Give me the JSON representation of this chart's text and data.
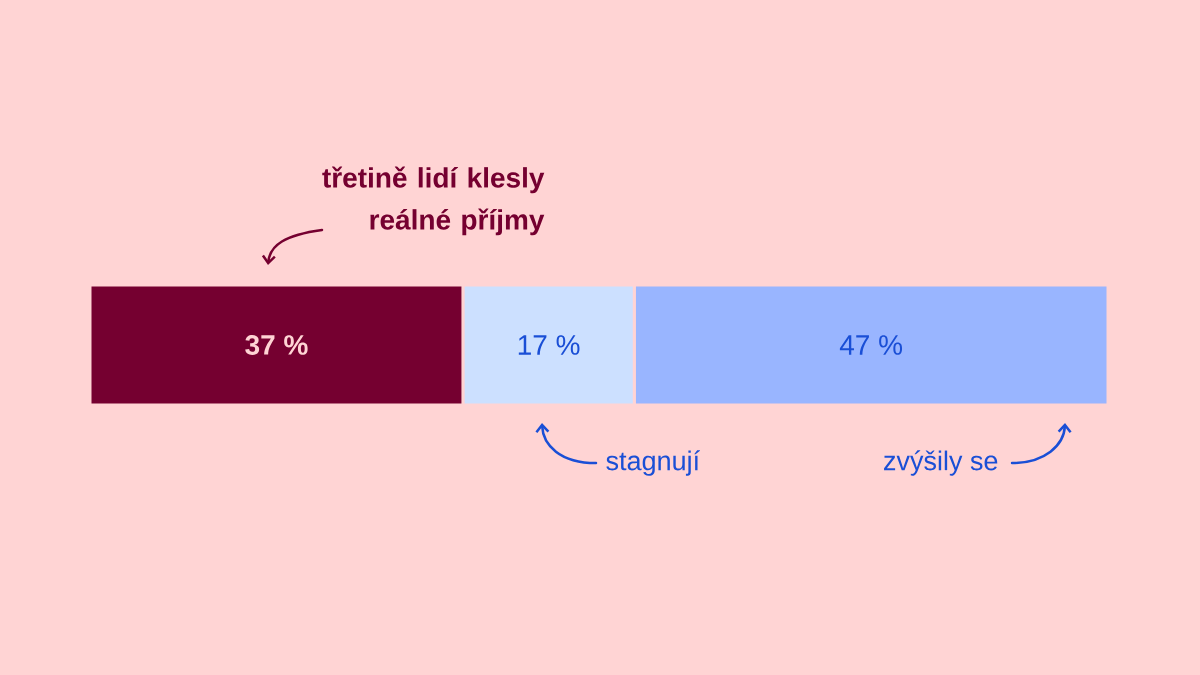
{
  "chart_data": {
    "type": "bar",
    "orientation": "horizontal",
    "stacked": true,
    "categories": [
      null
    ],
    "series": [
      {
        "color": "#750030",
        "values": [
          37
        ],
        "value_labels": [
          "37 %"
        ]
      },
      {
        "color": "#cce0ff",
        "values": [
          17
        ],
        "value_labels": [
          "17 %"
        ]
      },
      {
        "color": "#99b5ff",
        "values": [
          47
        ],
        "value_labels": [
          "47 %"
        ]
      }
    ],
    "annotations": [
      "třetině lidí klesly reálné příjmy",
      "stagnují",
      "zvýšily se"
    ]
  }
}
